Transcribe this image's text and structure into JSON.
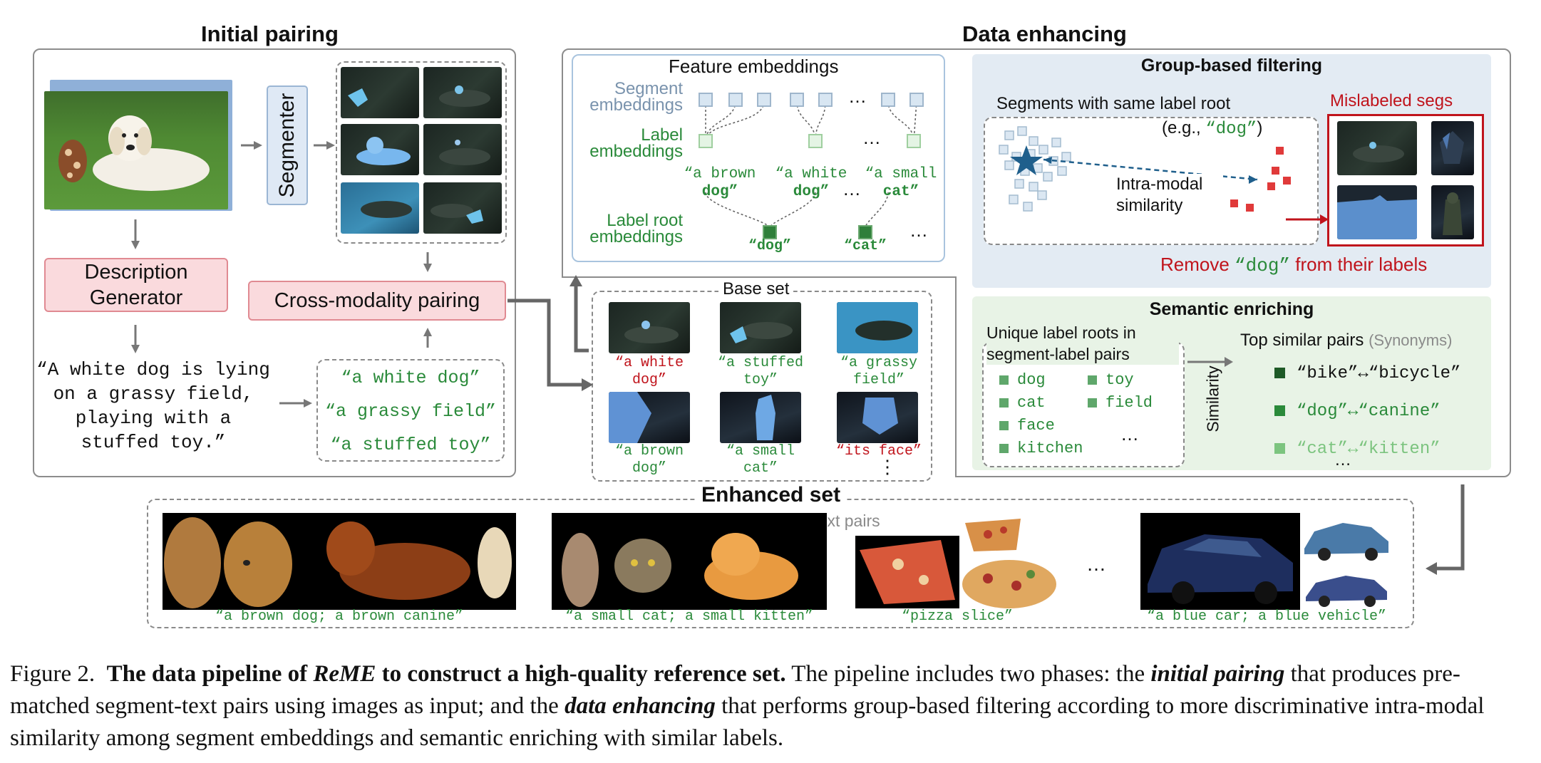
{
  "initial_pairing": {
    "title": "Initial pairing",
    "segmenter_label": "Segmenter",
    "description_generator": "Description Generator",
    "cross_modality_pairing": "Cross-modality pairing",
    "description_text": "“A white dog is lying on a grassy field, playing with a stuffed toy.”",
    "phrases": [
      "“a white dog”",
      "“a grassy field”",
      "“a stuffed toy”"
    ]
  },
  "data_enhancing": {
    "title": "Data enhancing",
    "feature_embeddings": {
      "title": "Feature embeddings",
      "segment_embeddings": "Segment embeddings",
      "label_embeddings": "Label embeddings",
      "label_root_embeddings": "Label root embeddings",
      "labels": [
        {
          "pre": "“a brown",
          "root": "dog”"
        },
        {
          "pre": "“a white",
          "root": "dog”"
        },
        {
          "pre": "“a small",
          "root": "cat”"
        }
      ],
      "roots": [
        "“dog”",
        "“cat”"
      ],
      "ellipsis": "…"
    },
    "group_filtering": {
      "title": "Group-based filtering",
      "segments_same_root": "Segments with same label root",
      "example_pre": "(e.g., ",
      "example_word": "“dog”",
      "example_post": ")",
      "intra_modal": "Intra-modal similarity",
      "mislabeled": "Mislabeled segs",
      "remove_pre": "Remove ",
      "remove_word": "“dog”",
      "remove_post": " from their labels"
    },
    "semantic_enriching": {
      "title": "Semantic enriching",
      "unique_roots_title": "Unique label roots in segment-label pairs",
      "roots_col1": [
        "dog",
        "cat",
        "face",
        "kitchen"
      ],
      "roots_col2": [
        "toy",
        "field"
      ],
      "ellipsis": "…",
      "similarity": "Similarity",
      "top_pairs": "Top similar pairs",
      "synonyms": "(Synonyms)",
      "pairs": [
        "“bike”↔“bicycle”",
        "“dog”↔“canine”",
        "“cat”↔“kitten”"
      ],
      "pairs_ellipsis": "…"
    }
  },
  "base_set": {
    "title": "Base set",
    "captions": [
      {
        "text": "“a white dog”",
        "color": "red"
      },
      {
        "text": "“a stuffed toy”",
        "color": "green"
      },
      {
        "text": "“a grassy field”",
        "color": "green"
      },
      {
        "text": "“a brown dog”",
        "color": "green"
      },
      {
        "text": "“a small cat”",
        "color": "green"
      },
      {
        "text": "“its face”",
        "color": "red"
      }
    ],
    "ellipsis": "⋮"
  },
  "enhanced_set": {
    "title": "Enhanced set",
    "subtitle": "w/ high-quality segment-text pairs",
    "groups": [
      "“a brown dog; a brown canine”",
      "“a small cat; a small kitten”",
      "“pizza slice”",
      "“a blue car; a blue vehicle”"
    ],
    "ellipsis": "…"
  },
  "caption": {
    "label": "Figure 2.",
    "bold_pre": "The data pipeline of ",
    "bold_em": "ReME",
    "bold_post": " to construct a high-quality reference set.",
    "t1": " The pipeline includes two phases: the ",
    "em1": "initial pairing",
    "t2": " that produces pre-matched segment-text pairs using images as input; and the ",
    "em2": "data enhancing",
    "t3": " that performs group-based filtering according to more discriminative intra-modal similarity among segment embeddings and semantic enriching with similar labels."
  },
  "colors": {
    "accent_green": "#2a8a3a",
    "accent_red": "#c0141c",
    "panel_blue": "#e3ebf3",
    "panel_green": "#e8f3e6",
    "pink": "#fadadd"
  }
}
